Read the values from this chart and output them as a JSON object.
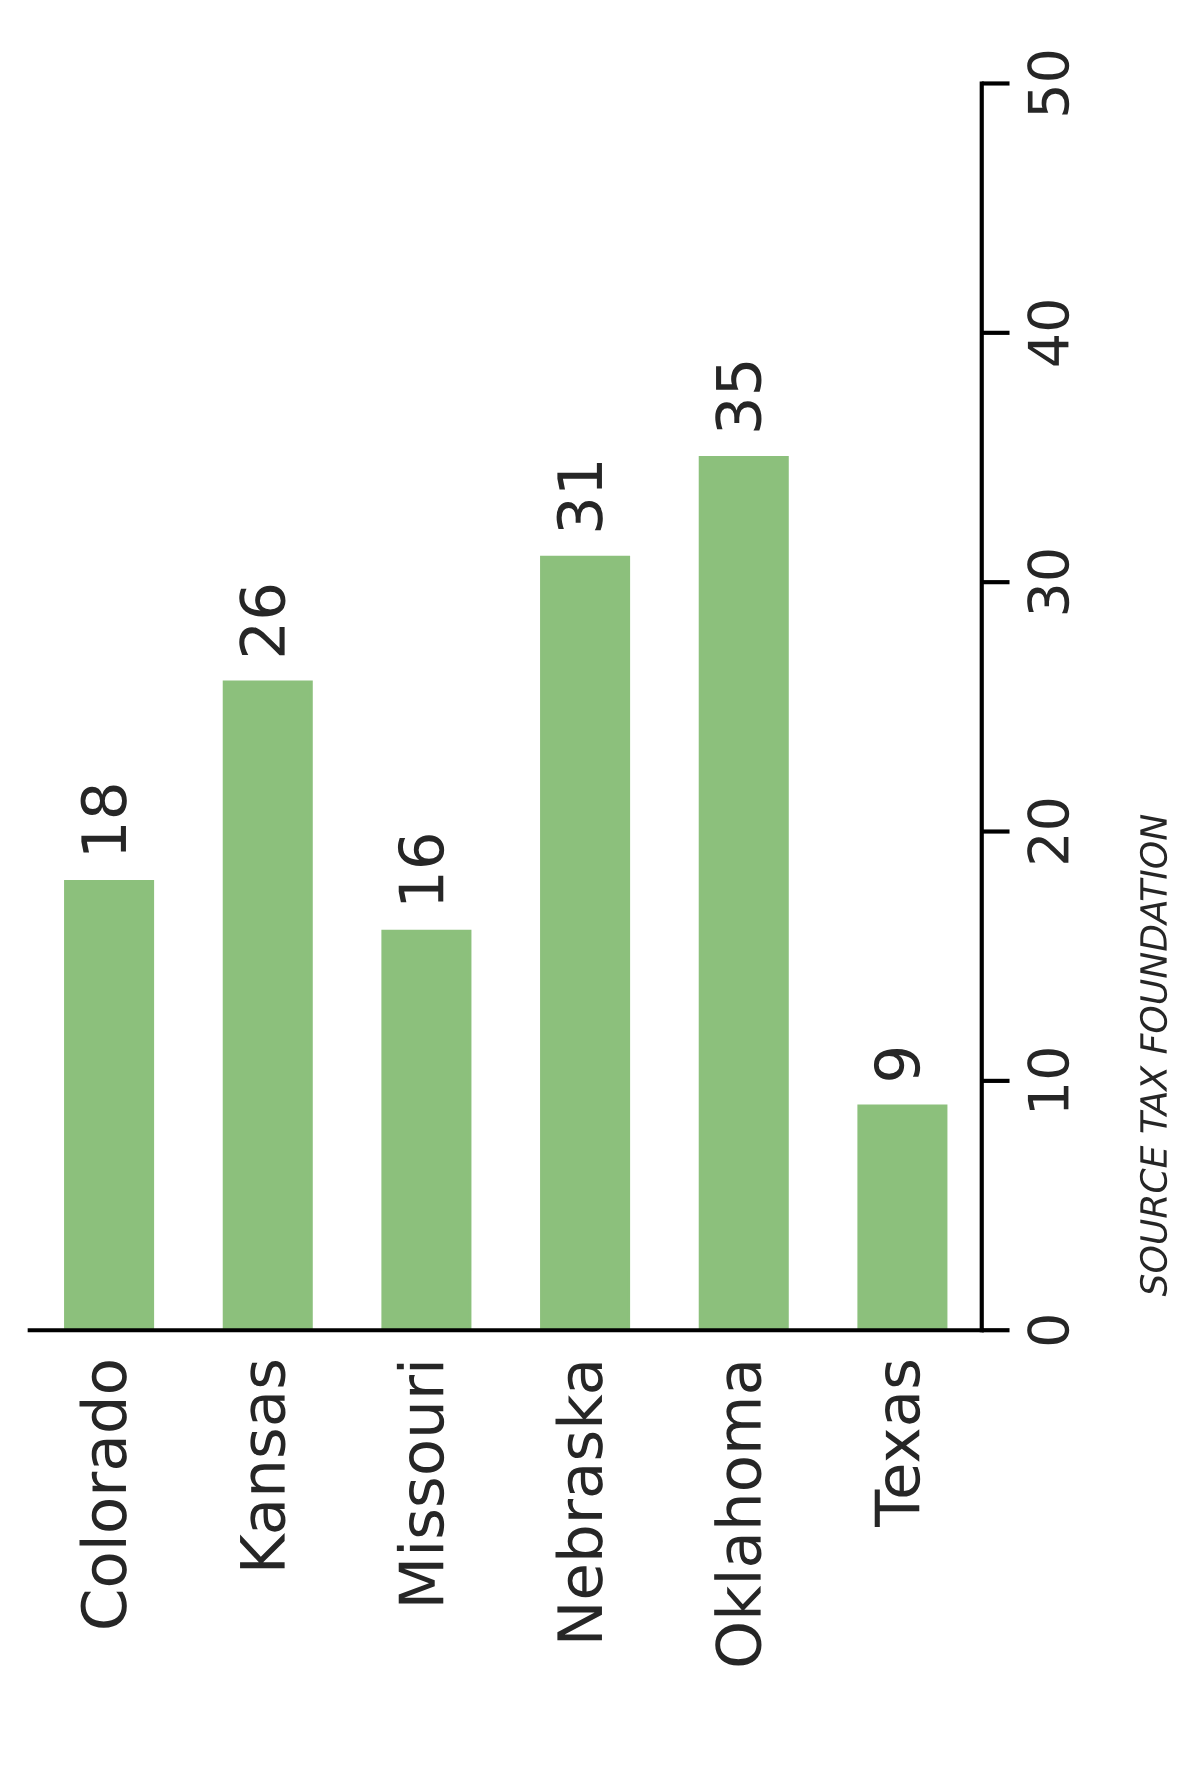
{
  "chart_data": {
    "type": "bar",
    "categories": [
      "Colorado",
      "Kansas",
      "Missouri",
      "Nebraska",
      "Oklahoma",
      "Texas"
    ],
    "values": [
      18,
      26,
      16,
      31,
      35,
      9
    ],
    "color": "#8cc07c",
    "ylim": [
      0,
      50
    ],
    "yticks": [
      0,
      10,
      20,
      30,
      40,
      50
    ],
    "data_labels": true,
    "grid": false,
    "legend": false,
    "annotations": [
      "SOURCE TAX FOUNDATION"
    ]
  }
}
